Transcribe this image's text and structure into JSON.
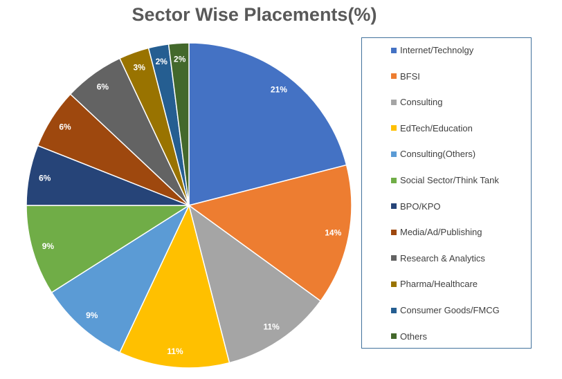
{
  "chart_data": {
    "type": "pie",
    "title": "Sector Wise Placements(%)",
    "categories": [
      "Internet/Technolgy",
      "BFSI",
      "Consulting",
      "EdTech/Education",
      "Consulting(Others)",
      "Social Sector/Think Tank",
      "BPO/KPO",
      "Media/Ad/Publishing",
      "Research & Analytics",
      "Pharma/Healthcare",
      "Consumer Goods/FMCG",
      "Others"
    ],
    "values": [
      21,
      14,
      11,
      11,
      9,
      9,
      6,
      6,
      6,
      3,
      2,
      2
    ],
    "data_labels": [
      "21%",
      "14%",
      "11%",
      "11%",
      "9%",
      "9%",
      "6%",
      "6%",
      "6%",
      "3%",
      "2%",
      "2%"
    ],
    "colors": [
      "#4472C4",
      "#ED7D31",
      "#A5A5A5",
      "#FFC000",
      "#5B9BD5",
      "#70AD47",
      "#264478",
      "#9E480E",
      "#636363",
      "#997300",
      "#255E91",
      "#43682B"
    ],
    "legend_position": "right"
  }
}
